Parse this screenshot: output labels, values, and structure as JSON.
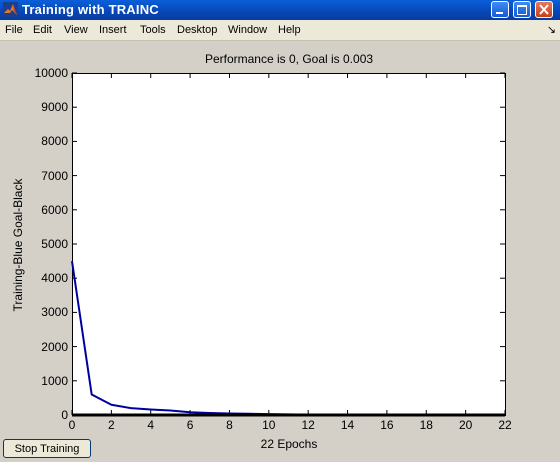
{
  "window": {
    "title": "Training with TRAINC"
  },
  "menu": {
    "items": [
      "File",
      "Edit",
      "View",
      "Insert",
      "Tools",
      "Desktop",
      "Window",
      "Help"
    ],
    "dock_arrow": "↘"
  },
  "footer": {
    "stop_label": "Stop Training"
  },
  "colors": {
    "training": "#0000a0",
    "goal": "#000000"
  },
  "chart_data": {
    "type": "line",
    "title": "Performance is 0, Goal is 0.003",
    "xlabel": "22 Epochs",
    "ylabel": "Training-Blue  Goal-Black",
    "xlim": [
      0,
      22
    ],
    "ylim": [
      0,
      10000
    ],
    "xticks": [
      0,
      2,
      4,
      6,
      8,
      10,
      12,
      14,
      16,
      18,
      20,
      22
    ],
    "yticks": [
      0,
      1000,
      2000,
      3000,
      4000,
      5000,
      6000,
      7000,
      8000,
      9000,
      10000
    ],
    "grid": false,
    "series": [
      {
        "x": [
          0,
          1,
          2,
          3,
          4,
          5,
          6,
          7,
          8,
          9,
          10,
          11,
          12,
          13,
          14,
          15,
          16,
          17,
          18,
          19,
          20,
          21,
          22
        ],
        "values": [
          4500,
          600,
          300,
          200,
          160,
          130,
          80,
          60,
          45,
          35,
          25,
          18,
          12,
          8,
          5,
          3,
          2,
          1,
          1,
          0,
          0,
          0,
          0
        ],
        "color": "#0000a0"
      },
      {
        "x": [
          0,
          22
        ],
        "values": [
          0.003,
          0.003
        ],
        "color": "#000000"
      }
    ]
  }
}
